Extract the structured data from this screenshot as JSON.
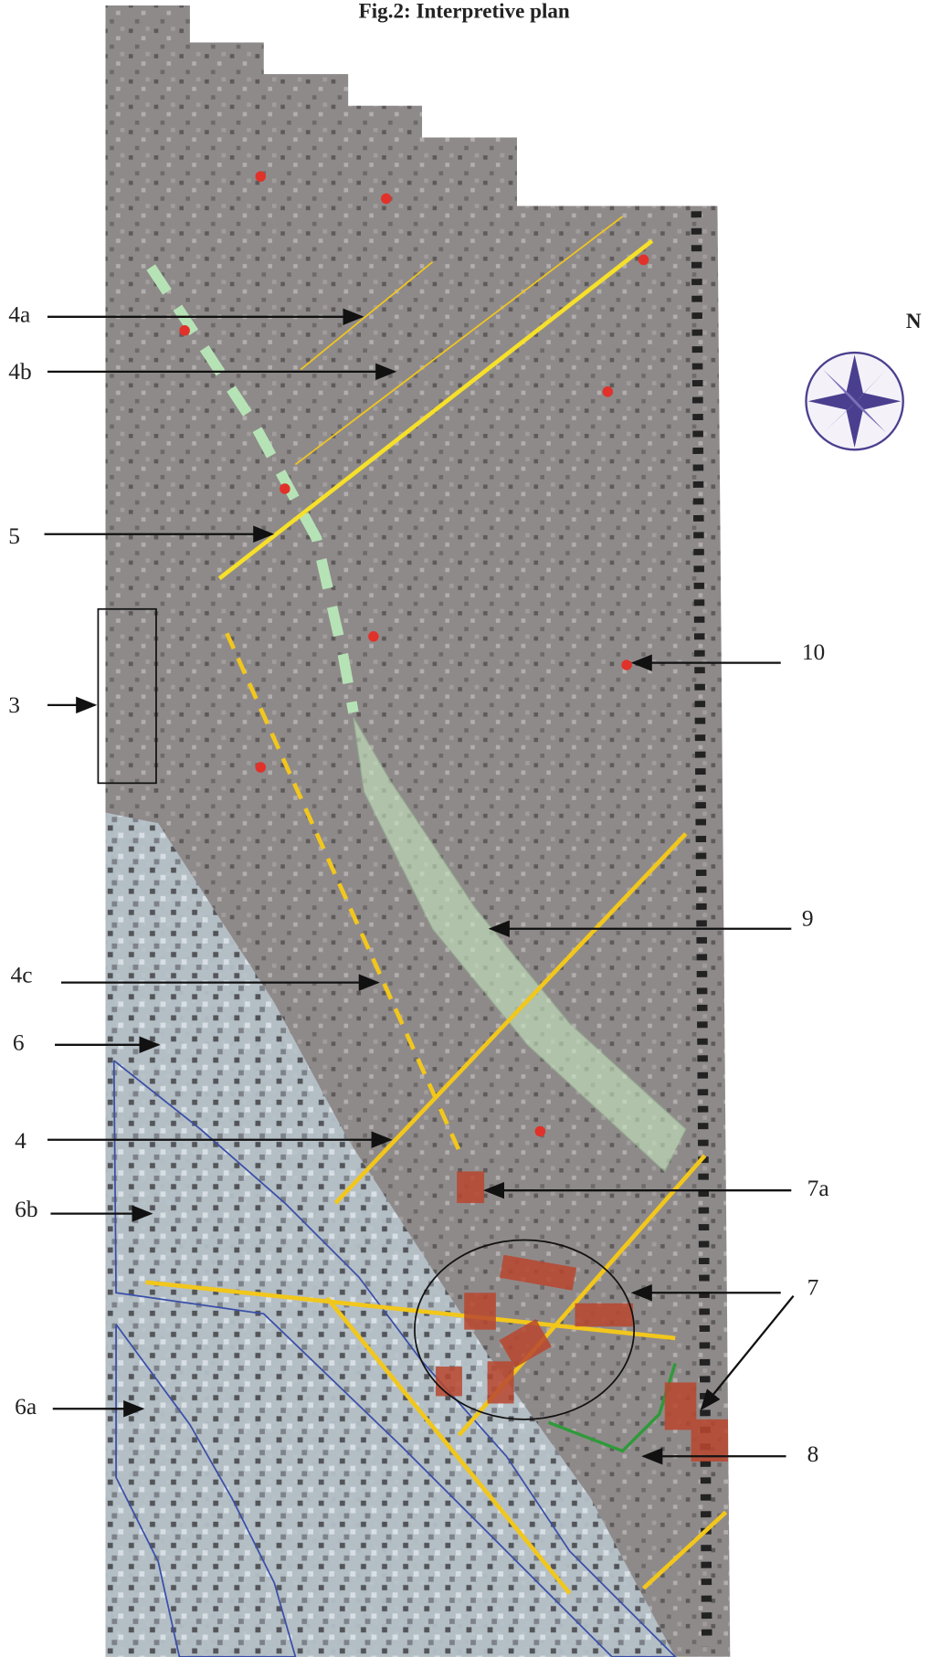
{
  "title": "Fig.2: Interpretive plan",
  "north": "N",
  "labels": [
    "4a",
    "4b",
    "5",
    "3",
    "10",
    "9",
    "4c",
    "6",
    "4",
    "6b",
    "7a",
    "7",
    "8",
    "6a"
  ]
}
